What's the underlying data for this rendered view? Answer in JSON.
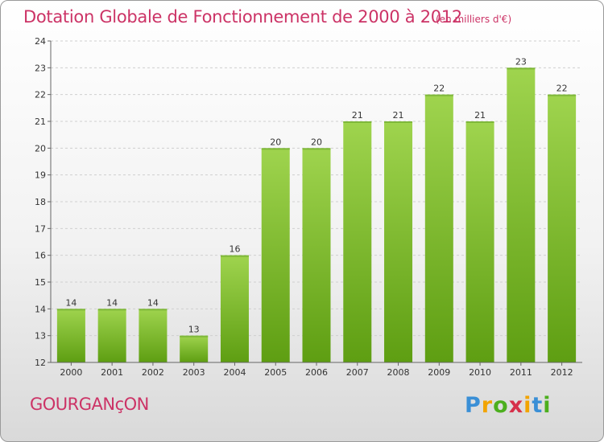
{
  "header": {
    "title": "Dotation Globale de Fonctionnement de 2000 à 2012",
    "unit_note": "(en milliers d'€)"
  },
  "footer": {
    "place": "GOURGANçON",
    "logo_letters": [
      "P",
      "r",
      "o",
      "x",
      "i",
      "t",
      "i"
    ]
  },
  "colors": {
    "title": "#cc3366",
    "bar_top": "#9fd44e",
    "bar_bottom": "#5e9e12",
    "logo": [
      "#3a8fd6",
      "#f2a400",
      "#4caf1e",
      "#d6304a",
      "#f2a400",
      "#3a8fd6",
      "#4caf1e"
    ]
  },
  "chart_data": {
    "type": "bar",
    "categories": [
      "2000",
      "2001",
      "2002",
      "2003",
      "2004",
      "2005",
      "2006",
      "2007",
      "2008",
      "2009",
      "2010",
      "2011",
      "2012"
    ],
    "values": [
      14,
      14,
      14,
      13,
      16,
      20,
      20,
      21,
      21,
      22,
      21,
      23,
      22
    ],
    "ylim": [
      12,
      24
    ],
    "yticks": [
      12,
      13,
      14,
      15,
      16,
      17,
      18,
      19,
      20,
      21,
      22,
      23,
      24
    ],
    "grid": true,
    "legend": "none"
  }
}
